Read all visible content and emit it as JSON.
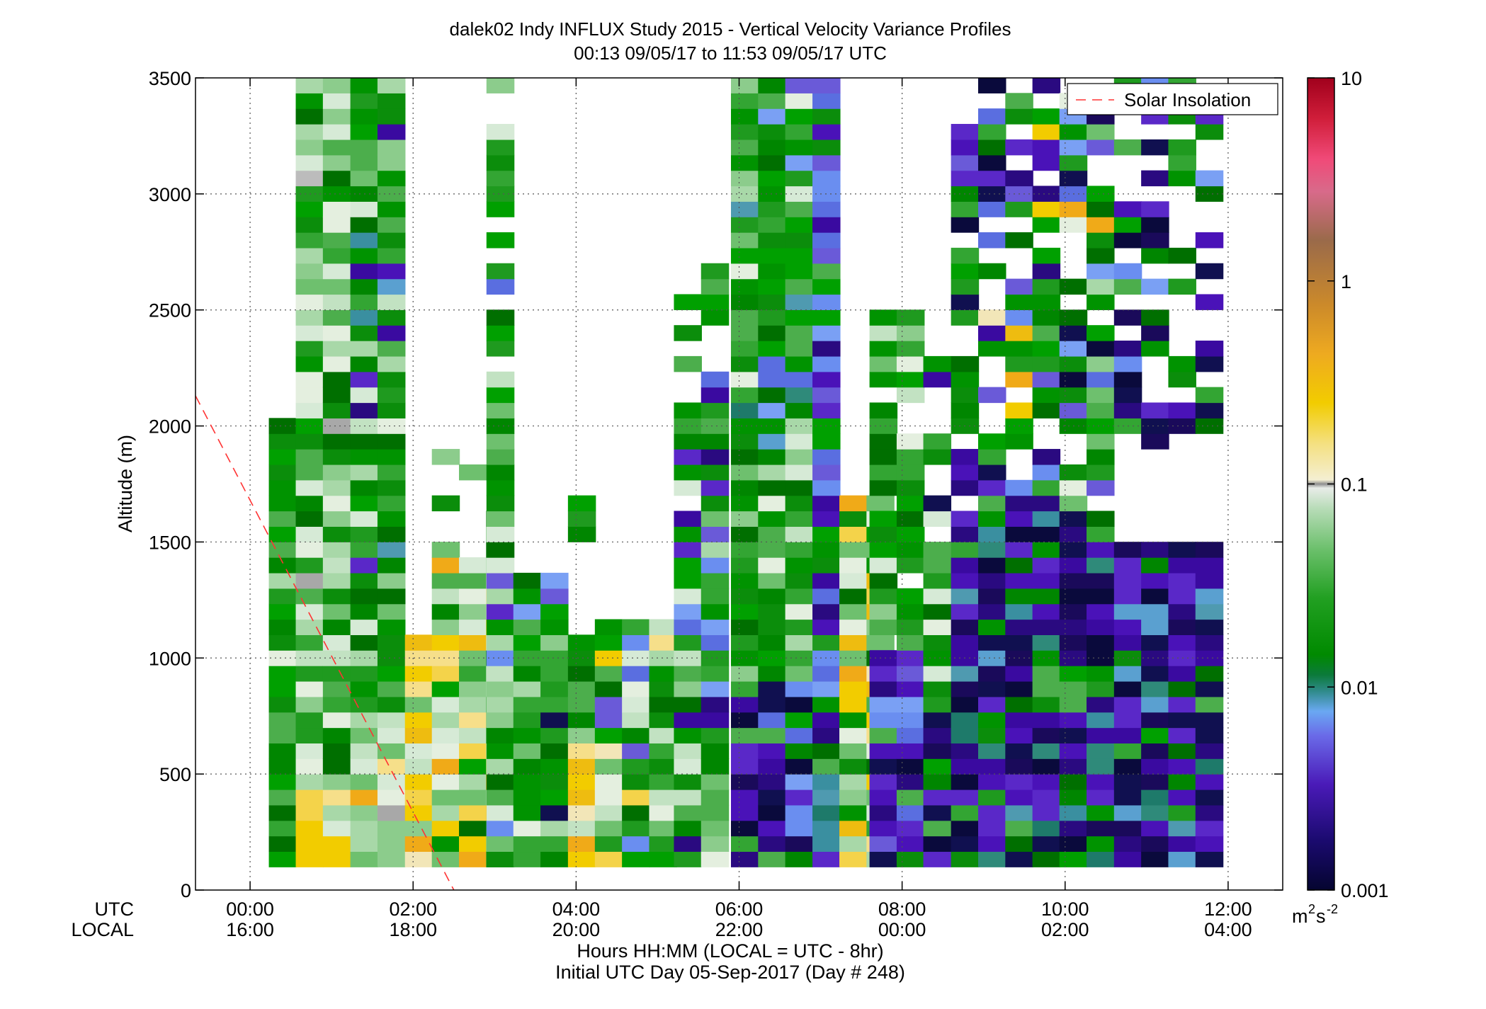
{
  "chart_data": {
    "type": "heatmap",
    "title": "dalek02 Indy INFLUX Study 2015 - Vertical Velocity Variance Profiles",
    "subtitle": "00:13 09/05/17 to 11:53 09/05/17  UTC",
    "ylabel": "Altitude (m)",
    "xlabel": "Hours HH:MM  (LOCAL = UTC - 8hr)",
    "xlabel2": "Initial UTC Day 05-Sep-2017 (Day # 248)",
    "x_row_label_utc": "UTC",
    "x_row_label_local": "LOCAL",
    "xlim_hours": [
      -0.67,
      12.67
    ],
    "ylim": [
      0,
      3500
    ],
    "y_ticks": [
      "0",
      "500",
      "1000",
      "1500",
      "2000",
      "2500",
      "3000",
      "3500"
    ],
    "x_ticks": [
      {
        "hour": 0,
        "utc": "00:00",
        "local": "16:00"
      },
      {
        "hour": 2,
        "utc": "02:00",
        "local": "18:00"
      },
      {
        "hour": 4,
        "utc": "04:00",
        "local": "20:00"
      },
      {
        "hour": 6,
        "utc": "06:00",
        "local": "22:00"
      },
      {
        "hour": 8,
        "utc": "08:00",
        "local": "00:00"
      },
      {
        "hour": 10,
        "utc": "10:00",
        "local": "02:00"
      },
      {
        "hour": 12,
        "utc": "12:00",
        "local": "04:00"
      }
    ],
    "grid": true,
    "legend": {
      "position": "top-right",
      "entries": [
        "Solar Insolation"
      ]
    },
    "solar_insolation_line": {
      "color": "#ff3333",
      "style": "dashed",
      "x_hours": [
        -0.67,
        2.5
      ],
      "y_alt": [
        2130,
        0
      ]
    },
    "colorbar": {
      "scale": "log",
      "ticks": [
        "0.001",
        "0.01",
        "0.1",
        "1",
        "10"
      ],
      "range": [
        0.001,
        10
      ],
      "units_base": "m",
      "units_exp1": "2",
      "units_mid": "s",
      "units_exp2": "-2"
    },
    "cell_time_step_hours": 0.333,
    "cell_alt_step_m": 66.7,
    "columns_summary": [
      {
        "t_start": 0.23,
        "alt_top": 2000,
        "values": "0.01-0.03"
      },
      {
        "t_start": 0.56,
        "alt_top": 3500,
        "values": "0.01-0.2 (yellow low levels)"
      },
      {
        "t_start": 1.23,
        "alt_top": 3500,
        "values": "0.01-0.1"
      },
      {
        "t_start": 1.9,
        "alt_top": 1100,
        "values": "0.05-0.3"
      },
      {
        "t_start": 2.9,
        "alt_top": 3450,
        "values": "0.01-0.08"
      },
      {
        "t_start": 3.9,
        "alt_top": 1100,
        "values": "0.01-0.3"
      },
      {
        "t_start": 5.2,
        "alt_top": 2700,
        "values": "0.002-0.05"
      },
      {
        "t_start": 6.0,
        "alt_top": 3500,
        "values": "0.002-0.03"
      },
      {
        "t_start": 7.0,
        "alt_top": 1650,
        "values": "0.01-0.3"
      },
      {
        "t_start": 7.6,
        "alt_top": 2450,
        "values": "0.002-0.05"
      },
      {
        "t_start": 8.6,
        "alt_top": 3500,
        "values": "0.001-0.3"
      },
      {
        "t_start": 10.6,
        "alt_top": 3500,
        "values": "0.001-0.1"
      }
    ]
  }
}
